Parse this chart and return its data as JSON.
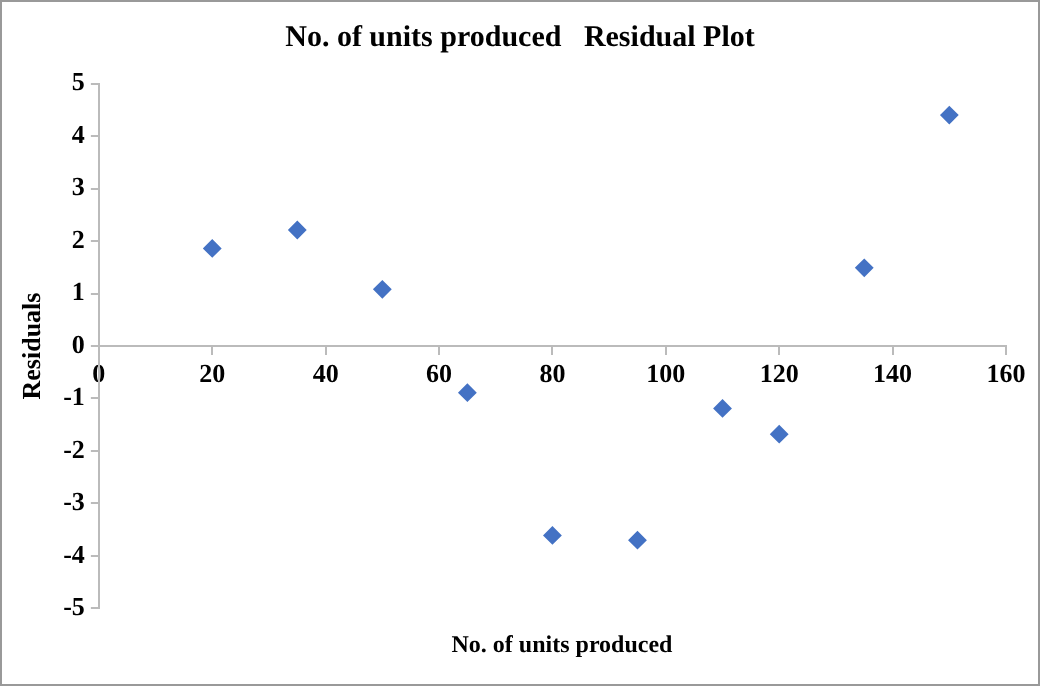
{
  "chart_data": {
    "type": "scatter",
    "title": "No. of units produced   Residual Plot",
    "xlabel": "No. of units produced",
    "ylabel": "Residuals",
    "x": [
      20,
      35,
      50,
      65,
      80,
      95,
      110,
      120,
      135,
      150
    ],
    "series": [
      {
        "color": "#4472c4",
        "values": [
          1.86,
          2.21,
          1.08,
          -0.89,
          -3.61,
          -3.7,
          -1.19,
          -1.68,
          1.49,
          4.4
        ]
      }
    ],
    "xlim": [
      0,
      160
    ],
    "xticks": [
      0,
      20,
      40,
      60,
      80,
      100,
      120,
      140,
      160
    ],
    "ylim": [
      -5,
      5
    ],
    "yticks": [
      -5,
      -4,
      -3,
      -2,
      -1,
      0,
      1,
      2,
      3,
      4,
      5
    ],
    "grid": false,
    "legend": false,
    "marker": "diamond"
  }
}
